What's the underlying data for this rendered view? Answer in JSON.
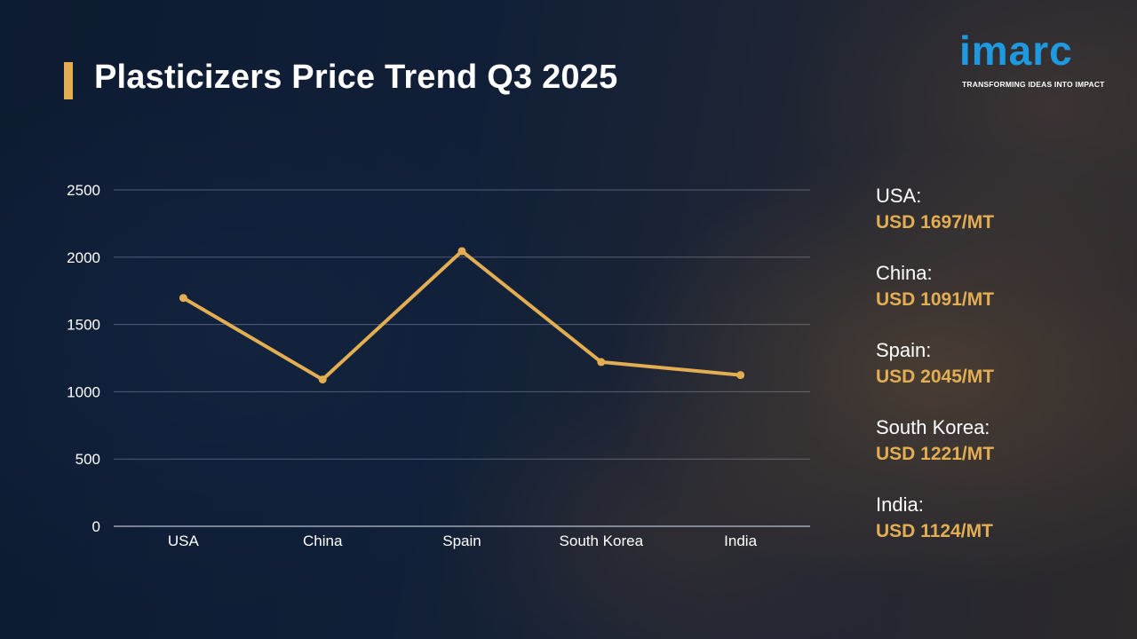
{
  "title": "Plasticizers Price Trend Q3 2025",
  "logo": {
    "word": "imarc",
    "tagline": "TRANSFORMING IDEAS INTO IMPACT"
  },
  "colors": {
    "accent": "#e3ad52",
    "logo_blue": "#1e9be0",
    "text": "#ffffff"
  },
  "chart_data": {
    "type": "line",
    "categories": [
      "USA",
      "China",
      "Spain",
      "South Korea",
      "India"
    ],
    "values": [
      1697,
      1091,
      2045,
      1221,
      1124
    ],
    "ylim": [
      0,
      2500
    ],
    "yticks": [
      0,
      500,
      1000,
      1500,
      2000,
      2500
    ],
    "grid": true,
    "legend": "none",
    "line_color": "#e3ad52"
  },
  "price_panel": [
    {
      "country": "USA:",
      "price": "USD 1697/MT"
    },
    {
      "country": "China:",
      "price": "USD 1091/MT"
    },
    {
      "country": "Spain:",
      "price": "USD 2045/MT"
    },
    {
      "country": "South Korea:",
      "price": "USD 1221/MT"
    },
    {
      "country": "India:",
      "price": "USD 1124/MT"
    }
  ]
}
